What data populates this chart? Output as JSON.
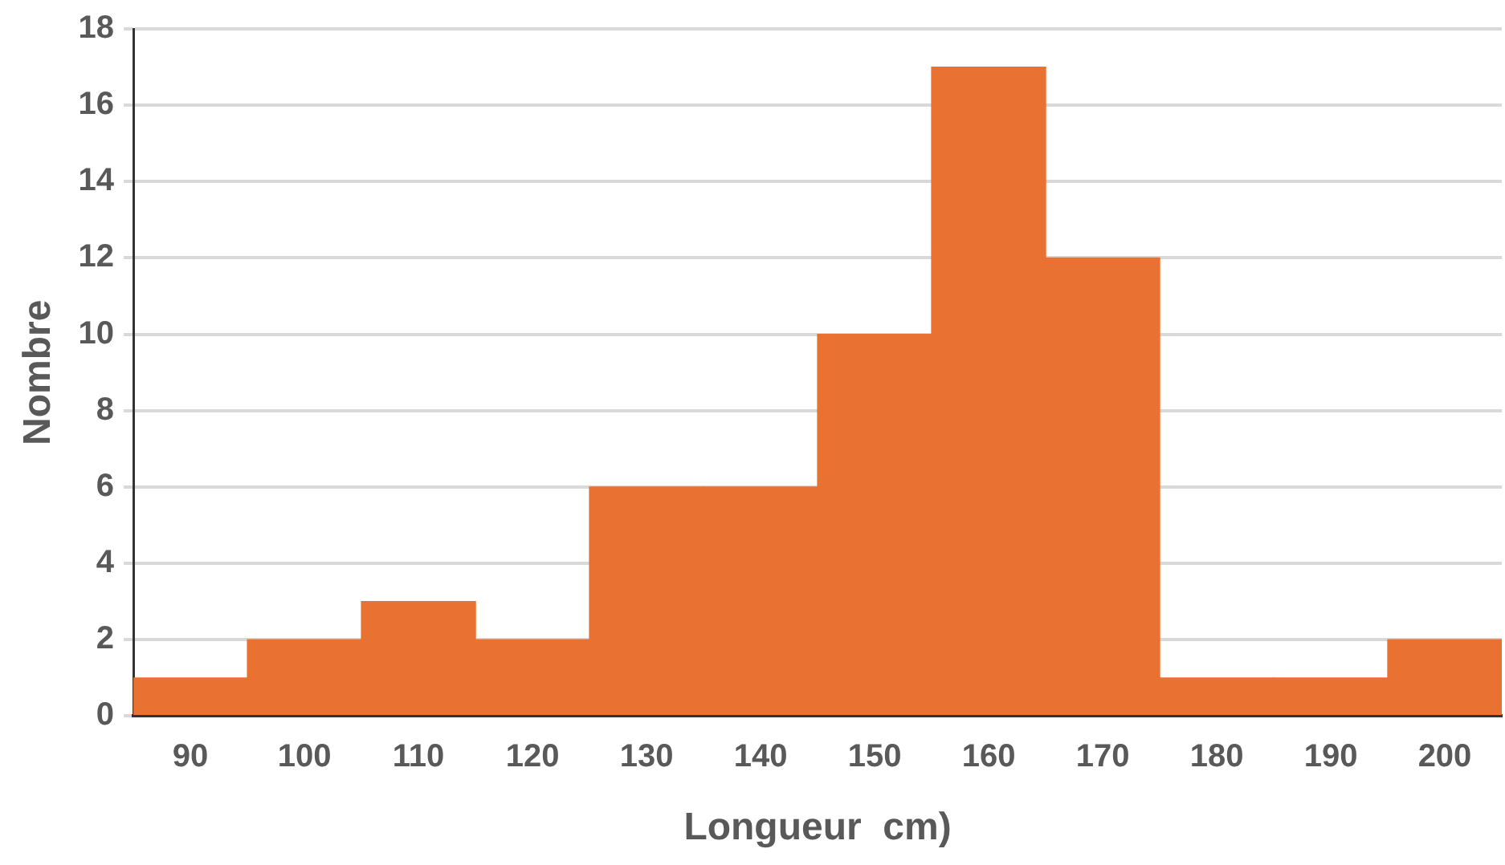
{
  "chart_data": {
    "type": "histogram",
    "xlabel": "Longueur  cm)",
    "ylabel": "Nombre",
    "bins": [
      85,
      95,
      105,
      115,
      125,
      135,
      145,
      155,
      165,
      175,
      185,
      195,
      205
    ],
    "values": [
      1,
      2,
      3,
      2,
      6,
      6,
      10,
      17,
      12,
      1,
      1,
      2
    ],
    "color": "#e97132",
    "xlim": [
      85,
      205
    ],
    "xticks": [
      90,
      100,
      110,
      120,
      130,
      140,
      150,
      160,
      170,
      180,
      190,
      200
    ],
    "ylim": [
      0,
      18
    ],
    "yticks": [
      0,
      2,
      4,
      6,
      8,
      10,
      12,
      14,
      16,
      18
    ],
    "grid": "y",
    "legend": false
  }
}
